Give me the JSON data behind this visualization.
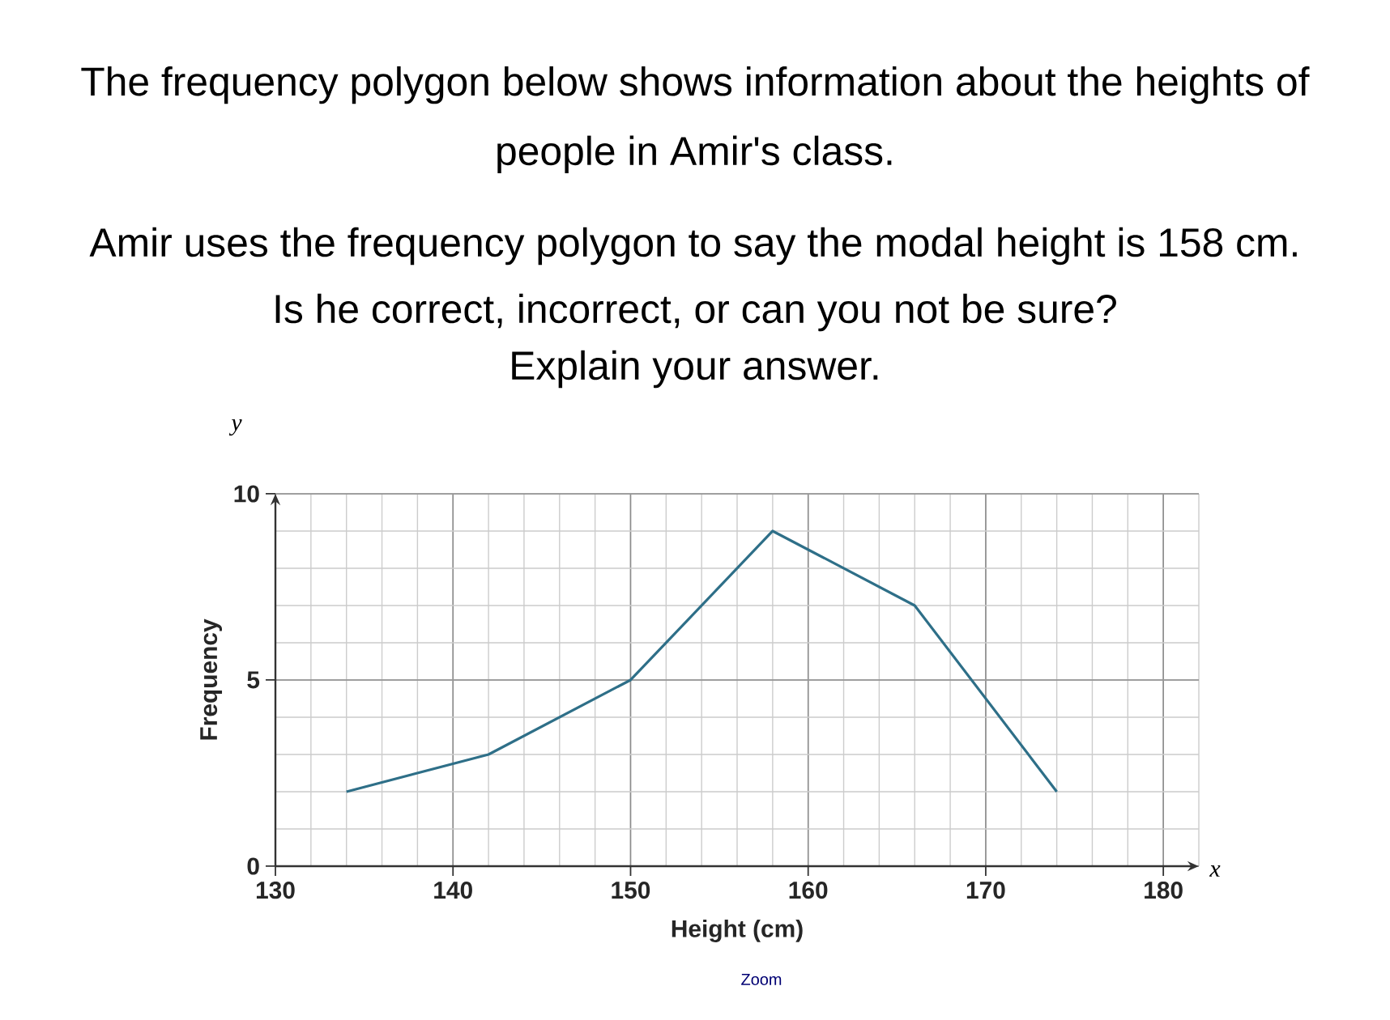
{
  "chart_data": {
    "type": "line",
    "title": "The frequency polygon below shows information about the heights of people in Amir's class.",
    "annotations": [
      "Amir uses the frequency polygon to say the modal height is 158 cm.",
      "Is he correct, incorrect, or can you not be sure?",
      "Explain your answer.",
      "x",
      "y",
      "Zoom"
    ],
    "xlabel": "Height (cm)",
    "ylabel": "Frequency",
    "x": [
      134,
      142,
      150,
      158,
      166,
      174
    ],
    "series": [
      {
        "color": "#2e6f88",
        "values": [
          2,
          3,
          5,
          9,
          7,
          2
        ]
      }
    ],
    "xlim": [
      130,
      182
    ],
    "xticks": [
      130,
      140,
      150,
      160,
      170,
      180
    ],
    "ylim": [
      0,
      10
    ],
    "yticks": [
      0,
      5,
      10
    ],
    "grid": true
  }
}
